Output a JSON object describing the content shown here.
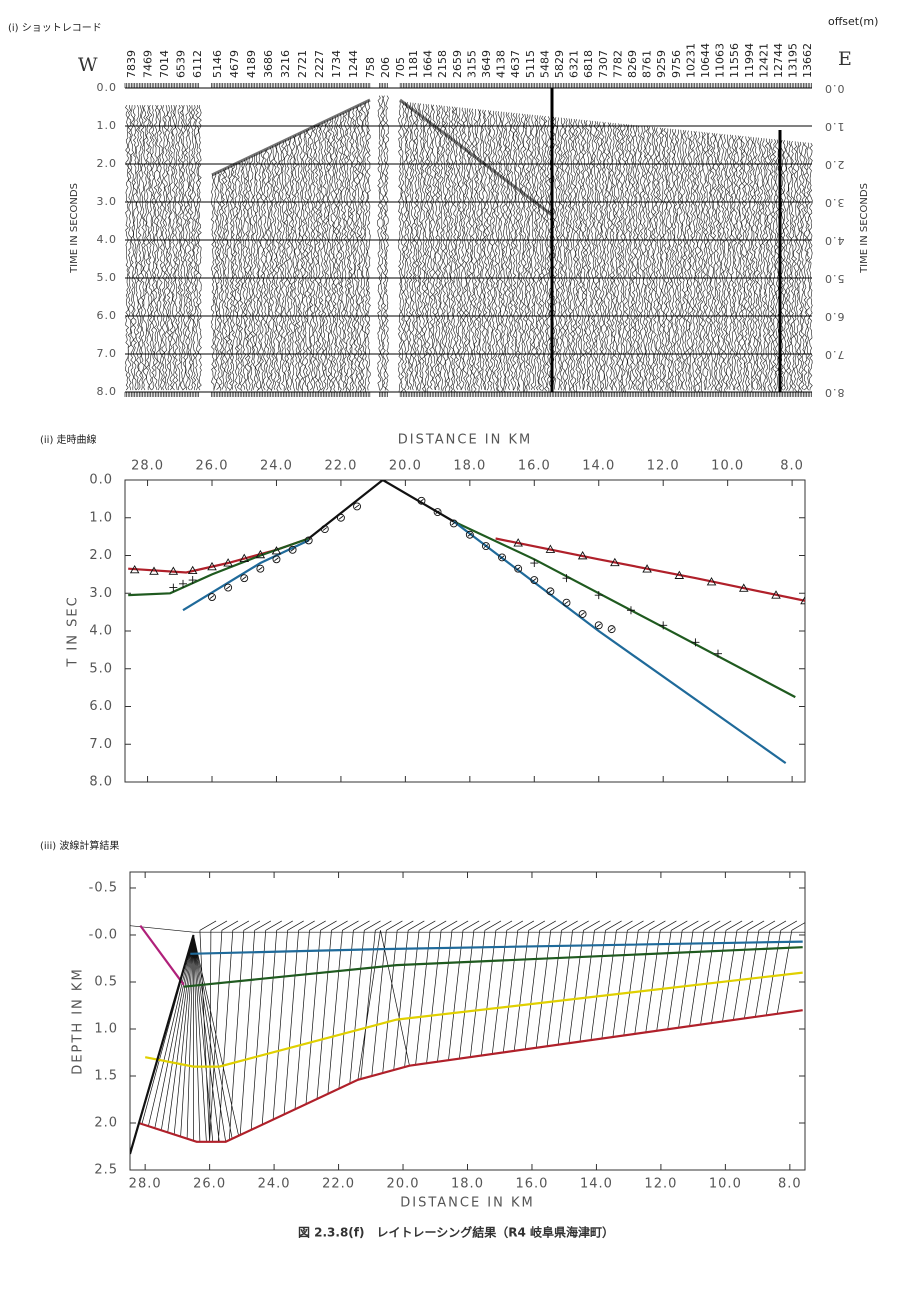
{
  "shot_record": {
    "label": "(i) ショットレコード",
    "offset_label": "offset(m)",
    "offsets": [
      7839,
      7469,
      7014,
      6539,
      6112,
      5146,
      4679,
      4189,
      3686,
      3216,
      2721,
      2227,
      1734,
      1244,
      758,
      206,
      705,
      1181,
      1664,
      2158,
      2659,
      3155,
      3649,
      4138,
      4637,
      5115,
      5484,
      5829,
      6321,
      6818,
      7307,
      7782,
      8269,
      8761,
      9259,
      9756,
      10231,
      10644,
      11063,
      11556,
      11994,
      12421,
      12744,
      13195,
      13662
    ],
    "west": "W",
    "east": "E",
    "axis_label": "TIME IN SECONDS",
    "ylim": [
      0,
      8
    ],
    "yticks": [
      {
        "value": 0,
        "label": "0.0"
      },
      {
        "value": 1,
        "label": "1.0"
      },
      {
        "value": 2,
        "label": "2.0"
      },
      {
        "value": 3,
        "label": "3.0"
      },
      {
        "value": 4,
        "label": "4.0"
      },
      {
        "value": 5,
        "label": "5.0"
      },
      {
        "value": 6,
        "label": "6.0"
      },
      {
        "value": 7,
        "label": "7.0"
      },
      {
        "value": 8,
        "label": "8.0"
      }
    ]
  },
  "chart_data": [
    {
      "type": "line",
      "label": "(ii) 走時曲線",
      "xlabel": "DISTANCE IN KM",
      "ylabel": "T IN SEC",
      "xaxis_position": "top",
      "xlim": [
        28.7,
        7.6
      ],
      "ylim": [
        0,
        8
      ],
      "xticks": [
        {
          "value": 28,
          "label": "28.0"
        },
        {
          "value": 26,
          "label": "26.0"
        },
        {
          "value": 24,
          "label": "24.0"
        },
        {
          "value": 22,
          "label": "22.0"
        },
        {
          "value": 20,
          "label": "20.0"
        },
        {
          "value": 18,
          "label": "18.0"
        },
        {
          "value": 16,
          "label": "16.0"
        },
        {
          "value": 14,
          "label": "14.0"
        },
        {
          "value": 12,
          "label": "12.0"
        },
        {
          "value": 10,
          "label": "10.0"
        },
        {
          "value": 8,
          "label": "8.0"
        }
      ],
      "yticks": [
        {
          "value": 0,
          "label": "0.0"
        },
        {
          "value": 1,
          "label": "1.0"
        },
        {
          "value": 2,
          "label": "2.0"
        },
        {
          "value": 3,
          "label": "3.0"
        },
        {
          "value": 4,
          "label": "4.0"
        },
        {
          "value": 5,
          "label": "5.0"
        },
        {
          "value": 6,
          "label": "6.0"
        },
        {
          "value": 7,
          "label": "7.0"
        },
        {
          "value": 8,
          "label": "8.0"
        }
      ],
      "series": [
        {
          "color": "#b0202a",
          "x": [
            28.6,
            26.8,
            25.5,
            24.0,
            23.0
          ],
          "values": [
            2.35,
            2.45,
            2.2,
            1.85,
            1.55
          ]
        },
        {
          "color": "#b0202a",
          "x": [
            17.2,
            14.0,
            11.0,
            7.6
          ],
          "values": [
            1.55,
            2.1,
            2.6,
            3.2
          ]
        },
        {
          "color": "#1f5a1f",
          "x": [
            28.6,
            27.3,
            26.0,
            24.5,
            23.0
          ],
          "values": [
            3.05,
            3.0,
            2.5,
            2.0,
            1.55
          ]
        },
        {
          "color": "#1f5a1f",
          "x": [
            18.5,
            16.0,
            12.0,
            7.9
          ],
          "values": [
            1.1,
            2.1,
            3.9,
            5.75
          ]
        },
        {
          "color": "#1f6a9a",
          "x": [
            26.9,
            24.5,
            23.0
          ],
          "values": [
            3.45,
            2.2,
            1.6
          ]
        },
        {
          "color": "#1f6a9a",
          "x": [
            18.5,
            14.0,
            8.2
          ],
          "values": [
            1.1,
            4.0,
            7.5
          ]
        },
        {
          "color": "#111111",
          "x": [
            23.0,
            20.7,
            18.5
          ],
          "values": [
            1.55,
            0,
            1.1
          ]
        },
        {
          "color": "#111111",
          "marker": "triangle",
          "x": [
            28.4,
            27.8,
            27.2,
            26.6,
            26.0,
            25.5,
            25.0,
            24.5,
            24.0,
            16.5,
            15.5,
            14.5,
            13.5,
            12.5,
            11.5,
            10.5,
            9.5,
            8.5,
            7.6
          ],
          "values": [
            2.38,
            2.42,
            2.42,
            2.4,
            2.3,
            2.2,
            2.08,
            1.98,
            1.88,
            1.67,
            1.84,
            2.01,
            2.19,
            2.36,
            2.53,
            2.7,
            2.87,
            3.05,
            3.2
          ]
        },
        {
          "color": "#111111",
          "marker": "plus",
          "x": [
            27.2,
            26.9,
            26.6,
            16.0,
            15.0,
            14.0,
            13.0,
            12.0,
            11.0,
            10.3
          ],
          "values": [
            2.85,
            2.75,
            2.65,
            2.2,
            2.6,
            3.05,
            3.45,
            3.85,
            4.3,
            4.6
          ]
        },
        {
          "color": "#111111",
          "marker": "circle",
          "x": [
            26.0,
            25.5,
            25.0,
            24.5,
            24.0,
            23.5,
            23.0,
            22.5,
            22.0,
            21.5,
            19.5,
            19.0,
            18.5,
            18.0,
            17.5,
            17.0,
            16.5,
            16.0,
            15.5,
            15.0,
            14.5,
            14.0,
            13.6
          ],
          "values": [
            3.1,
            2.85,
            2.6,
            2.35,
            2.1,
            1.85,
            1.6,
            1.3,
            1.0,
            0.7,
            0.55,
            0.85,
            1.15,
            1.45,
            1.75,
            2.05,
            2.35,
            2.65,
            2.95,
            3.25,
            3.55,
            3.85,
            3.95
          ]
        }
      ]
    },
    {
      "type": "line",
      "label": "(iii) 波線計算結果",
      "xlabel": "DISTANCE IN KM",
      "ylabel": "DEPTH IN KM",
      "xaxis_position": "bottom",
      "xlim": [
        28.47,
        7.53
      ],
      "ylim": [
        -0.67,
        2.5
      ],
      "xticks": [
        {
          "value": 28,
          "label": "28.0"
        },
        {
          "value": 26,
          "label": "26.0"
        },
        {
          "value": 24,
          "label": "24.0"
        },
        {
          "value": 22,
          "label": "22.0"
        },
        {
          "value": 20,
          "label": "20.0"
        },
        {
          "value": 18,
          "label": "18.0"
        },
        {
          "value": 16,
          "label": "16.0"
        },
        {
          "value": 14,
          "label": "14.0"
        },
        {
          "value": 12,
          "label": "12.0"
        },
        {
          "value": 10,
          "label": "10.0"
        },
        {
          "value": 8,
          "label": "8.0"
        }
      ],
      "yticks": [
        -0.5,
        {
          "value": 0,
          "label": "-0.0"
        },
        0.5,
        {
          "value": 1,
          "label": "1.0"
        },
        1.5,
        {
          "value": 2,
          "label": "2.0"
        },
        2.5
      ],
      "series": [
        {
          "color": "#1f6a9a",
          "x": [
            26.6,
            20.7,
            7.6
          ],
          "values": [
            0.2,
            0.15,
            0.07
          ]
        },
        {
          "color": "#1f5a1f",
          "x": [
            26.8,
            20.2,
            7.6
          ],
          "values": [
            0.55,
            0.32,
            0.13
          ]
        },
        {
          "color": "#e0d000",
          "x": [
            28.0,
            26.5,
            25.7,
            20.2,
            7.6
          ],
          "values": [
            1.3,
            1.4,
            1.4,
            0.9,
            0.4
          ]
        },
        {
          "color": "#b0202a",
          "x": [
            28.2,
            26.4,
            25.5,
            21.4,
            19.8,
            7.6
          ],
          "values": [
            2.0,
            2.2,
            2.2,
            1.54,
            1.39,
            0.8
          ]
        },
        {
          "color": "#b0207a",
          "x": [
            28.15,
            26.8
          ],
          "values": [
            -0.1,
            0.53
          ]
        },
        {
          "color": "#111111",
          "x": [
            28.47,
            26.5
          ],
          "values": [
            2.33,
            0
          ]
        }
      ]
    }
  ],
  "caption": "図 2.3.8(f)　レイトレーシング結果（R4 岐阜県海津町）"
}
